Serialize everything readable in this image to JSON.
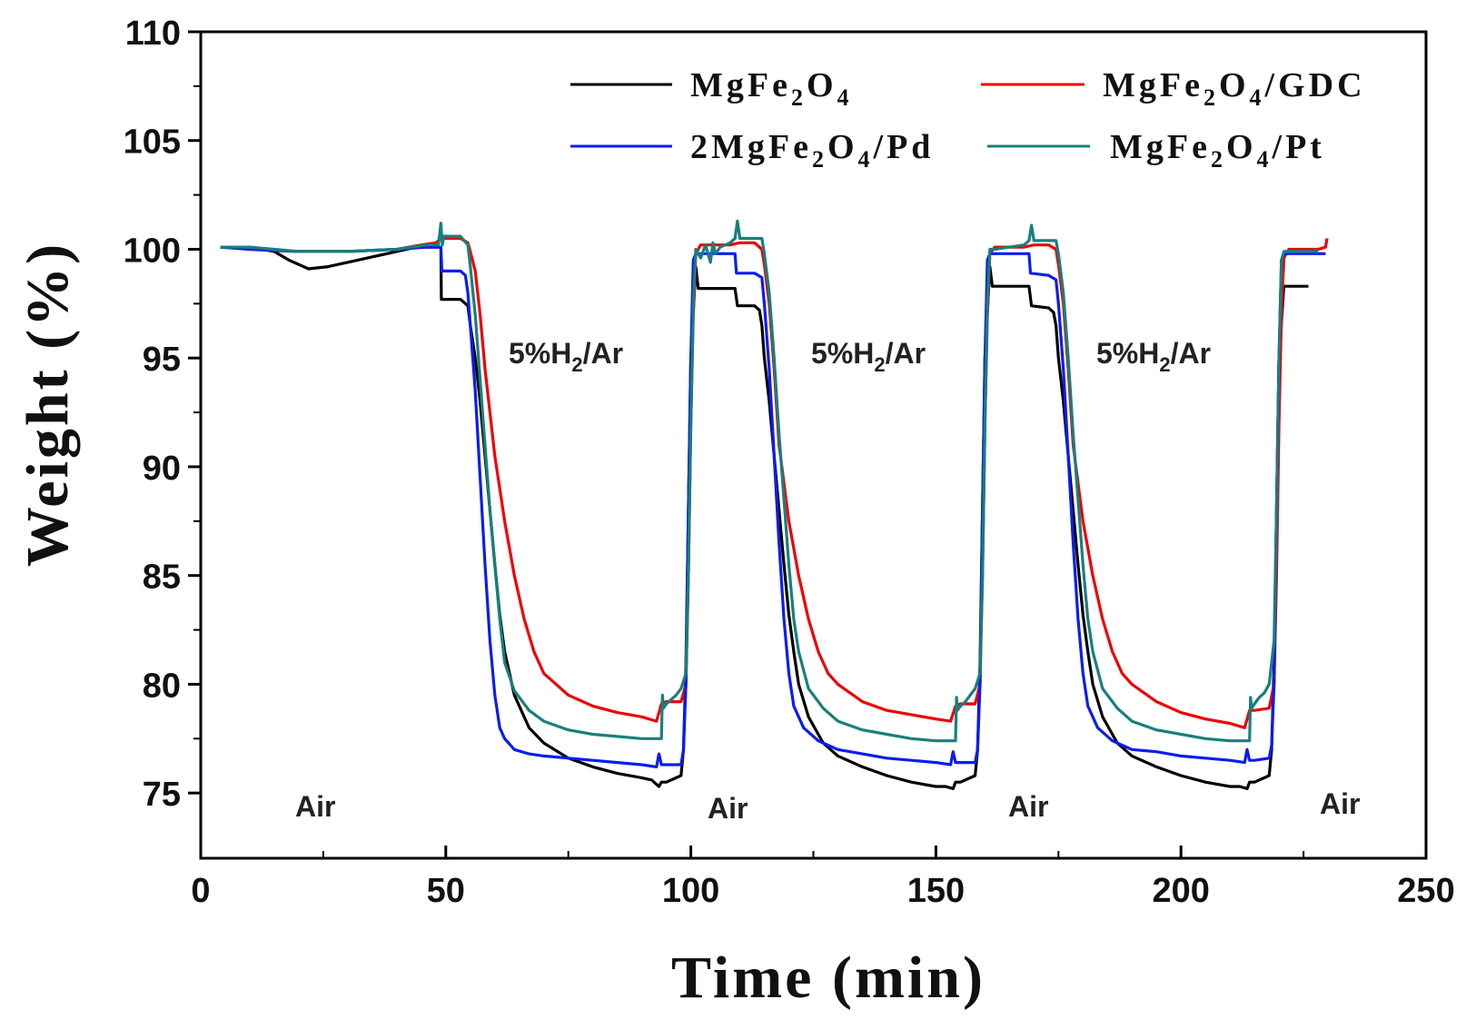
{
  "chart_data": {
    "type": "line",
    "xlabel": "Time (min)",
    "ylabel": "Weight (%)",
    "xlim": [
      0,
      250
    ],
    "ylim": [
      72,
      110
    ],
    "xticks": [
      "0",
      "50",
      "100",
      "150",
      "200",
      "250"
    ],
    "yticks": [
      "75",
      "80",
      "85",
      "90",
      "95",
      "100",
      "105",
      "110"
    ],
    "grid": false,
    "legend_position": "top-right",
    "legend_labels": [
      {
        "main": "MgFe",
        "sub1": "2",
        "mid": "O",
        "sub2": "4",
        "tail": ""
      },
      {
        "main": "MgFe",
        "sub1": "2",
        "mid": "O",
        "sub2": "4",
        "tail": "/GDC"
      },
      {
        "main": "2MgFe",
        "sub1": "2",
        "mid": "O",
        "sub2": "4",
        "tail": "/Pd"
      },
      {
        "main": "MgFe",
        "sub1": "2",
        "mid": "O",
        "sub2": "4",
        "tail": "/Pt"
      }
    ],
    "annotations": {
      "gas_reducing": {
        "main": "5%H",
        "sub": "2",
        "tail": "/Ar"
      },
      "gas_air": "Air"
    },
    "series": [
      {
        "color": "#000000",
        "x": [
          4,
          10,
          15,
          18,
          22,
          26,
          32,
          38,
          44,
          48,
          49,
          49.1,
          53,
          54.5,
          55,
          56,
          57,
          58,
          59,
          60,
          61,
          62,
          64,
          67,
          70,
          75,
          80,
          85,
          90,
          92,
          93.5,
          94,
          95,
          98,
          98.5,
          99,
          99.5,
          100,
          101,
          101.5,
          109,
          109.5,
          113,
          114,
          114.5,
          115,
          116,
          117,
          118,
          119,
          120,
          121,
          122,
          124,
          127,
          130,
          135,
          140,
          145,
          150,
          152,
          153.5,
          154,
          155,
          158,
          158.5,
          159,
          159.5,
          160,
          161,
          161.5,
          169,
          169.5,
          173,
          174,
          174.5,
          175,
          176,
          177,
          178,
          179,
          180,
          181,
          182,
          184,
          187,
          190,
          195,
          200,
          205,
          210,
          212,
          213.5,
          214,
          215,
          218,
          218.5,
          219,
          219.5,
          220,
          221,
          221.5,
          226
        ],
        "y": [
          100.1,
          100.1,
          99.9,
          99.5,
          99.1,
          99.2,
          99.5,
          99.8,
          100.1,
          100.1,
          100.1,
          97.7,
          97.7,
          97.4,
          96.5,
          95,
          93,
          90.5,
          88,
          85.5,
          83.2,
          81.5,
          79.5,
          78,
          77.3,
          76.6,
          76.2,
          75.9,
          75.7,
          75.6,
          75.3,
          75.5,
          75.5,
          75.8,
          77,
          81,
          88,
          95,
          99.2,
          98.2,
          98.2,
          97.4,
          97.4,
          97.2,
          96.5,
          95,
          93,
          90.5,
          88,
          85.5,
          83.2,
          81.5,
          80,
          78.5,
          77.3,
          76.7,
          76.2,
          75.8,
          75.5,
          75.3,
          75.3,
          75.2,
          75.5,
          75.5,
          75.8,
          77,
          81,
          88,
          95,
          99.2,
          98.3,
          98.3,
          97.4,
          97.3,
          97.1,
          96.5,
          95,
          93,
          90.5,
          88,
          85.5,
          83.2,
          81.5,
          80,
          78.5,
          77.3,
          76.7,
          76.2,
          75.8,
          75.5,
          75.3,
          75.3,
          75.2,
          75.5,
          75.5,
          75.8,
          77,
          81,
          88,
          95,
          98.3,
          98.3,
          98.3
        ]
      },
      {
        "color": "#ee0000",
        "x": [
          4,
          10,
          20,
          30,
          40,
          45,
          48,
          49,
          49.5,
          53,
          54.5,
          55,
          56,
          57,
          58,
          60,
          62,
          64,
          66,
          68,
          70,
          75,
          80,
          85,
          90,
          93,
          94,
          95,
          98,
          99,
          99.5,
          100,
          100.5,
          101,
          102,
          108,
          110,
          113,
          114.5,
          115,
          116,
          117,
          118,
          120,
          122,
          124,
          126,
          128,
          130,
          135,
          140,
          145,
          150,
          153,
          154,
          155,
          158,
          159,
          159.5,
          160,
          160.5,
          161,
          162,
          168,
          170,
          173,
          174.5,
          175,
          176,
          177,
          178,
          180,
          182,
          184,
          186,
          188,
          190,
          195,
          200,
          205,
          210,
          213,
          214,
          215,
          218,
          219,
          219.5,
          220,
          220.5,
          221,
          222,
          228,
          229.5,
          229.8
        ],
        "y": [
          100.1,
          100,
          99.9,
          99.9,
          100,
          100.2,
          100.3,
          100.5,
          100.5,
          100.5,
          100.3,
          99.9,
          99,
          97,
          94.5,
          90.5,
          87.5,
          85,
          83,
          81.5,
          80.5,
          79.5,
          79,
          78.7,
          78.5,
          78.3,
          79.1,
          79.2,
          79.2,
          80,
          85,
          92,
          97,
          99.8,
          100.2,
          100.2,
          100.3,
          100.3,
          100,
          99.3,
          97.5,
          94.5,
          91,
          87.5,
          85,
          83,
          81.5,
          80.5,
          80,
          79.2,
          78.8,
          78.6,
          78.4,
          78.3,
          79,
          79.1,
          79.1,
          80,
          85,
          92,
          97,
          99.8,
          100.1,
          100.1,
          100.2,
          100.2,
          100,
          99.3,
          97.5,
          94.5,
          91,
          87.5,
          85,
          83,
          81.5,
          80.5,
          80,
          79.2,
          78.7,
          78.4,
          78.2,
          78,
          78.8,
          78.8,
          78.9,
          80,
          85,
          92,
          97,
          99.6,
          100,
          100,
          100.1,
          100.5
        ]
      },
      {
        "color": "#0b1cf2",
        "x": [
          4,
          10,
          20,
          30,
          40,
          46,
          49,
          49.2,
          53,
          54,
          54.5,
          55,
          56,
          57,
          58,
          59,
          60,
          61,
          62,
          64,
          67,
          70,
          75,
          80,
          85,
          90,
          93,
          93.5,
          94,
          95,
          98,
          98.5,
          99,
          99.5,
          100,
          100.5,
          101,
          108,
          109,
          109.3,
          113,
          114.5,
          115,
          116,
          117,
          118,
          119,
          120,
          121,
          123,
          126,
          130,
          135,
          140,
          145,
          150,
          153,
          153.5,
          154,
          155,
          158,
          158.5,
          159,
          159.5,
          160,
          160.5,
          161,
          168,
          169,
          169.3,
          173,
          174.5,
          175,
          176,
          177,
          178,
          179,
          180,
          181,
          183,
          186,
          190,
          195,
          200,
          205,
          210,
          213,
          213.5,
          214,
          215,
          218,
          218.5,
          219,
          219.5,
          220,
          220.5,
          221,
          229.5
        ],
        "y": [
          100.1,
          100,
          99.9,
          99.9,
          100,
          100.1,
          100.1,
          99,
          99,
          98.8,
          98,
          96.5,
          93.5,
          89.5,
          85.5,
          82,
          79.5,
          78,
          77.5,
          77,
          76.8,
          76.7,
          76.6,
          76.5,
          76.4,
          76.3,
          76.2,
          76.8,
          76.3,
          76.3,
          76.3,
          77,
          80,
          88,
          95,
          99.5,
          99.8,
          99.8,
          99.8,
          98.9,
          98.9,
          98.7,
          97.5,
          94.5,
          90.5,
          86.5,
          83,
          80.5,
          79,
          78,
          77.4,
          77,
          76.8,
          76.6,
          76.5,
          76.4,
          76.3,
          76.9,
          76.4,
          76.4,
          76.4,
          77,
          80,
          88,
          95,
          99.5,
          99.8,
          99.8,
          99.8,
          98.9,
          98.8,
          98.6,
          97.5,
          94.5,
          90.5,
          86.5,
          83,
          80.5,
          79,
          78,
          77.4,
          77,
          76.9,
          76.7,
          76.6,
          76.5,
          76.4,
          77,
          76.5,
          76.5,
          76.6,
          77.2,
          80,
          88,
          95,
          99.5,
          99.8,
          99.8
        ]
      },
      {
        "color": "#17807e",
        "x": [
          4,
          10,
          20,
          30,
          40,
          46,
          48.5,
          49,
          49.3,
          49.6,
          50,
          53,
          54.5,
          55,
          56,
          57,
          58,
          59,
          60,
          61,
          62,
          64,
          67,
          70,
          75,
          80,
          85,
          90,
          94,
          94.2,
          94.4,
          95,
          96,
          97,
          98,
          99,
          99.5,
          100,
          100.5,
          101,
          102,
          103,
          104,
          104.5,
          105,
          106,
          108,
          109,
          109.5,
          110,
          114.5,
          115,
          116,
          117,
          118,
          119,
          120,
          121,
          122,
          124,
          127,
          130,
          135,
          140,
          145,
          150,
          154,
          154.2,
          154.4,
          155,
          156,
          157,
          158,
          159,
          159.5,
          160,
          160.5,
          161,
          162,
          165,
          168,
          169,
          169.5,
          170,
          171,
          174.5,
          175,
          176,
          177,
          178,
          179,
          180,
          181,
          182,
          184,
          187,
          190,
          195,
          200,
          205,
          210,
          214,
          214.2,
          214.4,
          215,
          216,
          217,
          218,
          219,
          219.5,
          220,
          220.5,
          221,
          228
        ],
        "y": [
          100.1,
          100.1,
          99.9,
          99.9,
          100,
          100.2,
          100.2,
          101.2,
          100.2,
          100.6,
          100.6,
          100.6,
          100.2,
          99.2,
          97,
          94,
          91,
          88,
          85.5,
          83,
          81,
          79.7,
          78.8,
          78.3,
          77.9,
          77.7,
          77.6,
          77.5,
          77.5,
          79.5,
          78.9,
          79.1,
          79.3,
          79.5,
          79.8,
          80.5,
          85,
          92,
          97.5,
          100,
          99.6,
          100.2,
          99.4,
          100.3,
          99.8,
          100.1,
          100.3,
          100.5,
          101.3,
          100.5,
          100.5,
          99.8,
          98,
          95,
          91.5,
          88.5,
          85.5,
          83,
          81.5,
          79.8,
          78.9,
          78.3,
          77.9,
          77.7,
          77.5,
          77.4,
          77.4,
          79.4,
          78.8,
          79,
          79.2,
          79.5,
          79.8,
          80.5,
          85,
          92,
          97.5,
          100,
          100,
          100.1,
          100.2,
          100.4,
          101.1,
          100.4,
          100.4,
          100.4,
          99.8,
          98,
          95,
          91.5,
          88.5,
          85.5,
          83,
          81.5,
          79.8,
          78.9,
          78.3,
          77.9,
          77.7,
          77.5,
          77.4,
          77.4,
          79.4,
          78.9,
          79.1,
          79.4,
          79.6,
          80,
          82,
          88,
          95,
          99.5,
          99.9,
          99.9
        ]
      }
    ]
  }
}
